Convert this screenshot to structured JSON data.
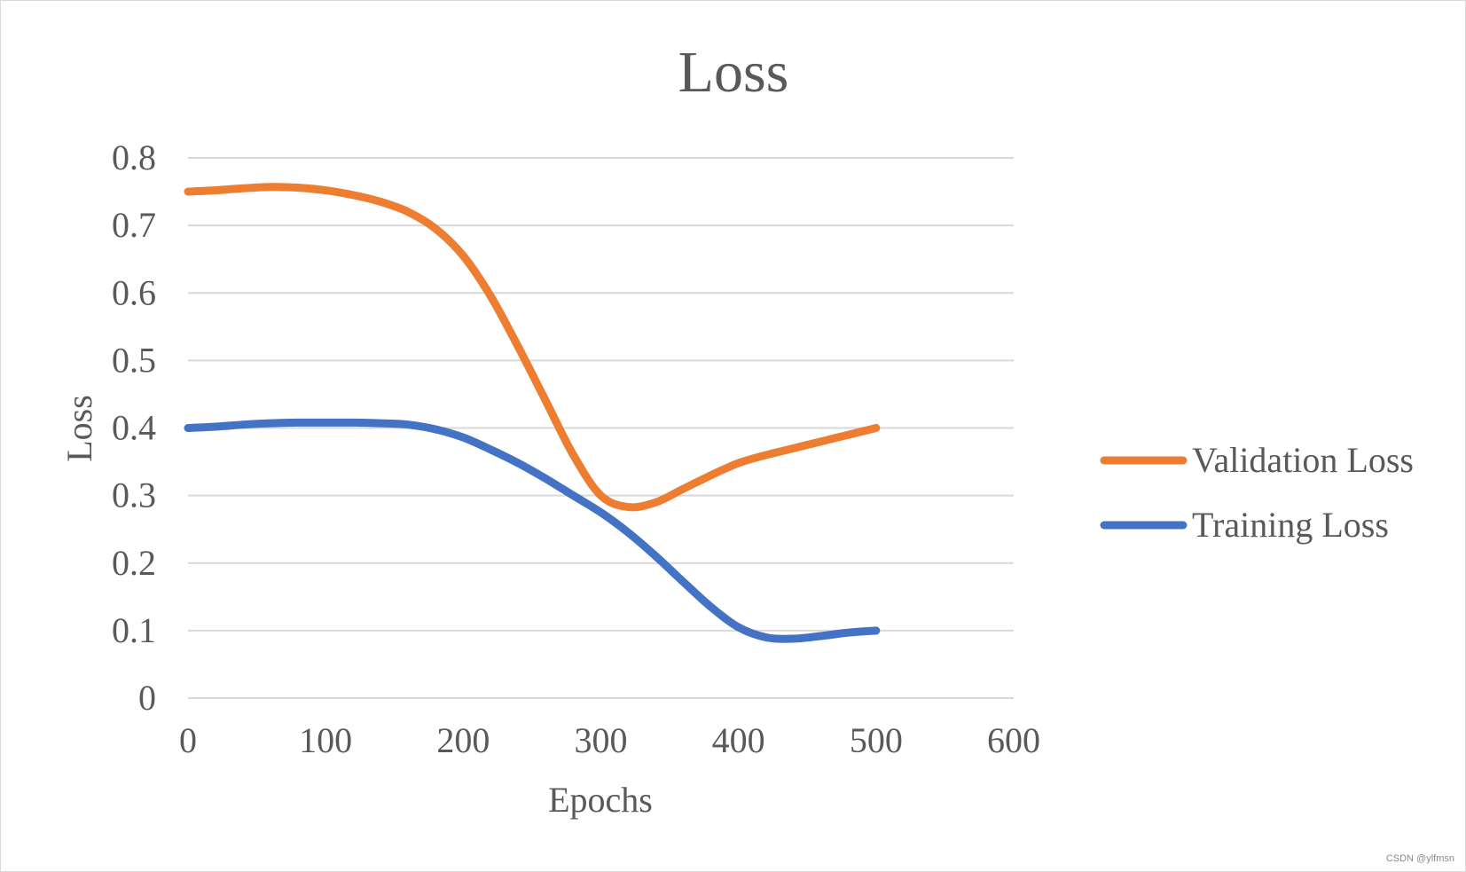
{
  "chart_data": {
    "type": "line",
    "title": "Loss",
    "xlabel": "Epochs",
    "ylabel": "Loss",
    "xlim": [
      0,
      600
    ],
    "ylim": [
      0,
      0.8
    ],
    "x_ticks": [
      0,
      100,
      200,
      300,
      400,
      500,
      600
    ],
    "y_ticks": [
      0,
      0.1,
      0.2,
      0.3,
      0.4,
      0.5,
      0.6,
      0.7,
      0.8
    ],
    "x_tick_labels": [
      "0",
      "100",
      "200",
      "300",
      "400",
      "500",
      "600"
    ],
    "y_tick_labels": [
      "0",
      "0.1",
      "0.2",
      "0.3",
      "0.4",
      "0.5",
      "0.6",
      "0.7",
      "0.8"
    ],
    "grid": "horizontal",
    "legend_position": "right",
    "series": [
      {
        "name": "Validation Loss",
        "color": "#ED7D31",
        "x": [
          0,
          20,
          40,
          60,
          80,
          100,
          120,
          140,
          160,
          180,
          200,
          220,
          240,
          260,
          280,
          300,
          320,
          340,
          360,
          380,
          400,
          420,
          440,
          460,
          480,
          500
        ],
        "y": [
          0.75,
          0.752,
          0.755,
          0.757,
          0.756,
          0.752,
          0.745,
          0.735,
          0.72,
          0.695,
          0.655,
          0.595,
          0.52,
          0.44,
          0.36,
          0.3,
          0.283,
          0.29,
          0.31,
          0.33,
          0.348,
          0.36,
          0.37,
          0.38,
          0.39,
          0.4
        ]
      },
      {
        "name": "Training Loss",
        "color": "#4472C4",
        "x": [
          0,
          20,
          40,
          60,
          80,
          100,
          120,
          140,
          160,
          180,
          200,
          220,
          240,
          260,
          280,
          300,
          320,
          340,
          360,
          380,
          400,
          420,
          440,
          460,
          480,
          500
        ],
        "y": [
          0.4,
          0.402,
          0.405,
          0.407,
          0.408,
          0.408,
          0.408,
          0.407,
          0.405,
          0.398,
          0.386,
          0.368,
          0.348,
          0.325,
          0.3,
          0.275,
          0.245,
          0.21,
          0.172,
          0.135,
          0.105,
          0.09,
          0.088,
          0.092,
          0.097,
          0.1
        ]
      }
    ]
  },
  "watermark": "CSDN @ylfmsn"
}
